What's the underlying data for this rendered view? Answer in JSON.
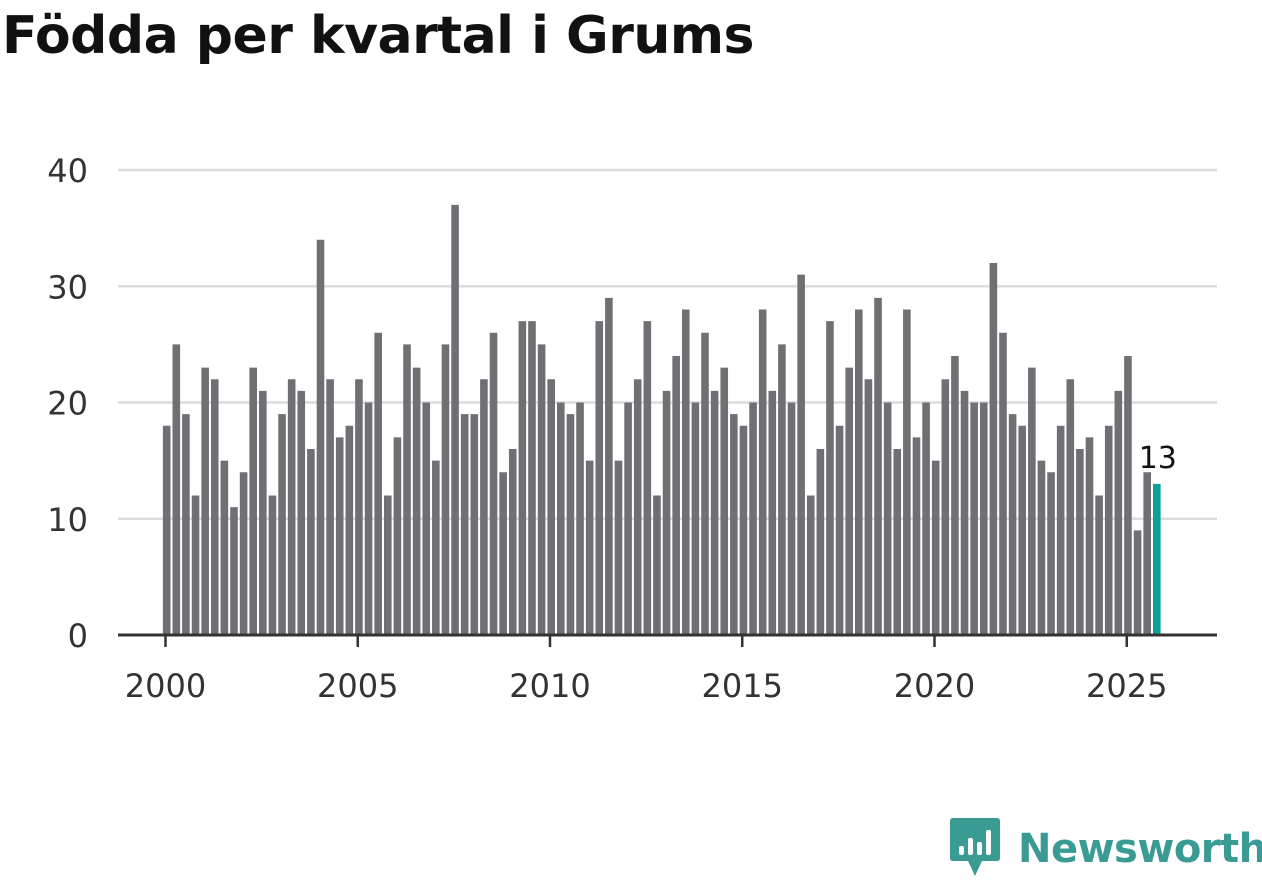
{
  "title": "Födda per kvartal i Grums",
  "brand": {
    "name": "Newsworthy",
    "color": "#3a9b94",
    "icon": "newsworthy-logo-icon"
  },
  "chart_data": {
    "type": "bar",
    "title": "Födda per kvartal i Grums",
    "xlabel": "",
    "ylabel": "",
    "x_ticks": [
      "2000",
      "2005",
      "2010",
      "2015",
      "2020",
      "2025"
    ],
    "y_ticks": [
      0,
      10,
      20,
      30,
      40
    ],
    "ylim": [
      0,
      40
    ],
    "grid": true,
    "start": "2000 Q1",
    "end": "2025 Q4",
    "values": [
      18,
      25,
      19,
      12,
      23,
      22,
      15,
      11,
      14,
      23,
      21,
      12,
      19,
      22,
      21,
      16,
      34,
      22,
      17,
      18,
      22,
      20,
      26,
      12,
      17,
      25,
      23,
      20,
      15,
      25,
      37,
      19,
      19,
      22,
      26,
      14,
      16,
      27,
      27,
      25,
      22,
      20,
      19,
      20,
      15,
      27,
      29,
      15,
      20,
      22,
      27,
      12,
      21,
      24,
      28,
      20,
      26,
      21,
      23,
      19,
      18,
      20,
      28,
      21,
      25,
      20,
      31,
      12,
      16,
      27,
      18,
      23,
      28,
      22,
      29,
      20,
      16,
      28,
      17,
      20,
      15,
      22,
      24,
      21,
      20,
      20,
      32,
      26,
      19,
      18,
      23,
      15,
      14,
      18,
      22,
      16,
      17,
      12,
      18,
      21,
      24,
      9,
      14,
      13
    ],
    "bar_color": "#707074",
    "highlight_color": "#0aa198",
    "highlight_label": "13"
  }
}
